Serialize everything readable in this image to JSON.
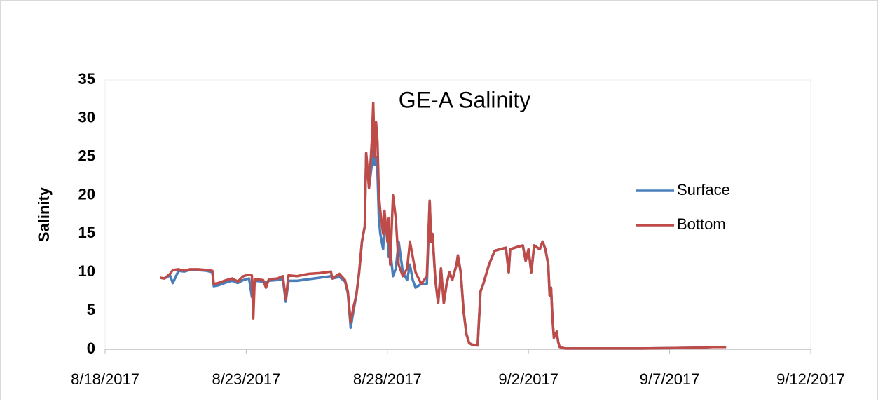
{
  "chart_data": {
    "type": "line",
    "title": "GE-A Salinity",
    "y_label": "Salinity",
    "xlim": [
      42965,
      42990
    ],
    "xticks": [
      {
        "value": 42965,
        "label": "8/18/2017"
      },
      {
        "value": 42970,
        "label": "8/23/2017"
      },
      {
        "value": 42975,
        "label": "8/28/2017"
      },
      {
        "value": 42980,
        "label": "9/2/2017"
      },
      {
        "value": 42985,
        "label": "9/7/2017"
      },
      {
        "value": 42990,
        "label": "9/12/2017"
      }
    ],
    "ylim": [
      0,
      35
    ],
    "yticks": [
      0,
      5,
      10,
      15,
      20,
      25,
      30,
      35
    ],
    "grid": false,
    "legend": "right",
    "x": [
      42966.95,
      42967.1,
      42967.3,
      42967.4,
      42967.6,
      42967.8,
      42968.0,
      42968.3,
      42968.6,
      42968.8,
      42968.85,
      42969.0,
      42969.3,
      42969.5,
      42969.7,
      42969.9,
      42970.1,
      42970.2,
      42970.25,
      42970.3,
      42970.6,
      42970.7,
      42970.8,
      42971.1,
      42971.3,
      42971.4,
      42971.5,
      42971.8,
      42972.2,
      42972.6,
      42972.8,
      42973.0,
      42973.05,
      42973.3,
      42973.5,
      42973.6,
      42973.7,
      42973.8,
      42973.9,
      42974.0,
      42974.1,
      42974.2,
      42974.25,
      42974.35,
      42974.45,
      42974.5,
      42974.55,
      42974.6,
      42974.65,
      42974.7,
      42974.75,
      42974.85,
      42974.9,
      42975.0,
      42975.05,
      42975.1,
      42975.2,
      42975.3,
      42975.4,
      42975.55,
      42975.7,
      42975.8,
      42975.9,
      42976.0,
      42976.2,
      42976.4,
      42976.5,
      42976.55,
      42976.6,
      42976.7,
      42976.8,
      42976.9,
      42977.0,
      42977.1,
      42977.2,
      42977.3,
      42977.45,
      42977.5,
      42977.6,
      42977.7,
      42977.8,
      42977.9,
      42978.0,
      42978.2,
      42978.3,
      42978.4,
      42978.6,
      42978.8,
      42979.0,
      42979.2,
      42979.3,
      42979.35,
      42979.6,
      42979.8,
      42979.9,
      42980.0,
      42980.1,
      42980.2,
      42980.4,
      42980.5,
      42980.6,
      42980.7,
      42980.75,
      42980.8,
      42980.85,
      42980.9,
      42981.0,
      42981.05,
      42981.1,
      42981.3,
      42982,
      42983,
      42984,
      42985,
      42986,
      42986.5,
      42987
    ],
    "series": [
      {
        "name": "Surface",
        "color": "#4a7ebb",
        "values": [
          9.3,
          9.2,
          9.6,
          8.6,
          10.2,
          10.1,
          10.3,
          10.3,
          10.2,
          10.0,
          8.2,
          8.3,
          8.7,
          8.9,
          8.6,
          9.0,
          9.2,
          6.8,
          7.0,
          8.9,
          8.8,
          8.7,
          8.9,
          9.0,
          9.1,
          6.2,
          8.9,
          8.9,
          9.1,
          9.3,
          9.4,
          9.5,
          9.2,
          9.4,
          8.8,
          7.3,
          2.8,
          5.0,
          7.0,
          10,
          14,
          16,
          25.5,
          21,
          24,
          26,
          24,
          25,
          23,
          17,
          15,
          13,
          16,
          15,
          12,
          13,
          9.5,
          10.5,
          14,
          10,
          9,
          11,
          9,
          8,
          8.5,
          8.5,
          19.3,
          14,
          15,
          9,
          6,
          10.5,
          6,
          8.5,
          10,
          9,
          11,
          12.2,
          10,
          5,
          2,
          0.8,
          0.6,
          0.5,
          7.5,
          8.5,
          11,
          12.8,
          13.0,
          13.2,
          10,
          13,
          13.3,
          13.5,
          11.5,
          13,
          10,
          13.5,
          13.0,
          14.0,
          13.0,
          11.0,
          7.0,
          8.0,
          4.0,
          1.5,
          2.3,
          1.0,
          0.3,
          0.1,
          0.1,
          0.1,
          0.1,
          0.15,
          0.2,
          0.3,
          0.3
        ]
      },
      {
        "name": "Bottom",
        "color": "#be4b48",
        "values": [
          9.3,
          9.2,
          9.8,
          10.3,
          10.4,
          10.2,
          10.4,
          10.4,
          10.3,
          10.2,
          8.5,
          8.6,
          9.0,
          9.2,
          8.8,
          9.5,
          9.7,
          9.6,
          4.0,
          9.1,
          9.0,
          8.0,
          9.1,
          9.2,
          9.5,
          6.5,
          9.6,
          9.5,
          9.8,
          9.9,
          10.0,
          10.1,
          9.2,
          9.8,
          9.0,
          7.5,
          3.5,
          5.5,
          7.0,
          10,
          14,
          16,
          25.5,
          21,
          27,
          32,
          25,
          29.5,
          27,
          20,
          18,
          15,
          18,
          14,
          17,
          11,
          20,
          17,
          11,
          9.5,
          10.5,
          14,
          12,
          10,
          8.5,
          9.5,
          19.3,
          14,
          15,
          9,
          6,
          10.5,
          6,
          8.5,
          10,
          9,
          11,
          12.2,
          10,
          5,
          2,
          0.8,
          0.6,
          0.5,
          7.5,
          8.5,
          11,
          12.8,
          13.0,
          13.2,
          10,
          13,
          13.3,
          13.5,
          11.5,
          13,
          10,
          13.5,
          13.0,
          14.0,
          13.0,
          11.0,
          7.0,
          8.0,
          4.0,
          1.5,
          2.3,
          1.0,
          0.3,
          0.1,
          0.1,
          0.1,
          0.1,
          0.15,
          0.2,
          0.3,
          0.3
        ]
      }
    ]
  }
}
